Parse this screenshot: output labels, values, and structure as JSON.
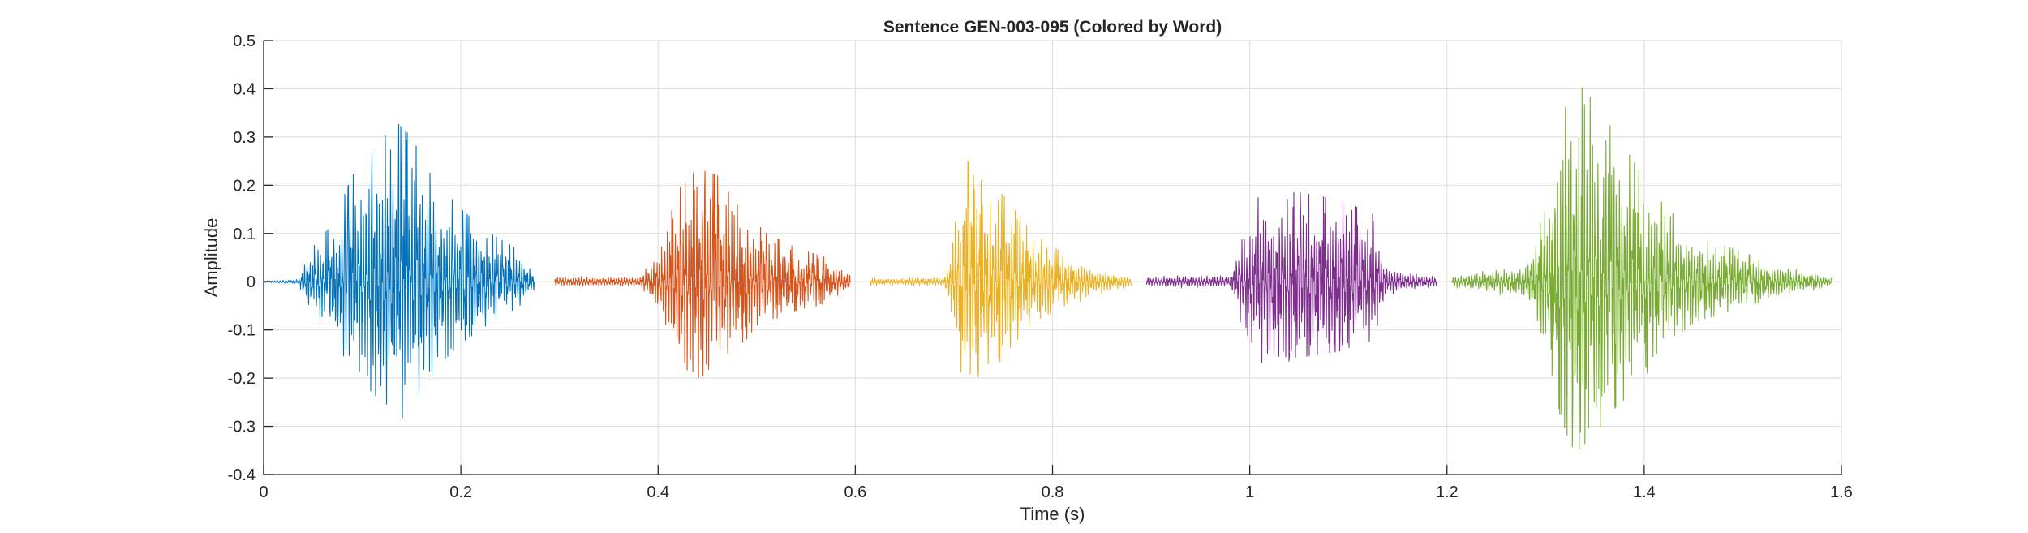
{
  "chart_data": {
    "type": "line",
    "title": "Sentence GEN-003-095 (Colored by Word)",
    "xlabel": "Time (s)",
    "ylabel": "Amplitude",
    "xlim": [
      0,
      1.6
    ],
    "ylim": [
      -0.4,
      0.5
    ],
    "xticks": [
      0,
      0.2,
      0.4,
      0.6,
      0.8,
      1,
      1.2,
      1.4,
      1.6
    ],
    "xtick_labels": [
      "0",
      "0.2",
      "0.4",
      "0.6",
      "0.8",
      "1",
      "1.2",
      "1.4",
      "1.6"
    ],
    "yticks": [
      -0.4,
      -0.3,
      -0.2,
      -0.1,
      0,
      0.1,
      0.2,
      0.3,
      0.4,
      0.5
    ],
    "ytick_labels": [
      "-0.4",
      "-0.3",
      "-0.2",
      "-0.1",
      "0",
      "0.1",
      "0.2",
      "0.3",
      "0.4",
      "0.5"
    ],
    "grid": true,
    "legend": false,
    "series": [
      {
        "color": "#0072BD",
        "x_start": 0.0,
        "x_end": 0.275,
        "envelope": [
          [
            0.0,
            0.002
          ],
          [
            0.035,
            0.005
          ],
          [
            0.045,
            0.06
          ],
          [
            0.07,
            0.12
          ],
          [
            0.09,
            0.22
          ],
          [
            0.11,
            0.27
          ],
          [
            0.135,
            0.33
          ],
          [
            0.15,
            0.3
          ],
          [
            0.17,
            0.22
          ],
          [
            0.2,
            0.15
          ],
          [
            0.23,
            0.1
          ],
          [
            0.255,
            0.07
          ],
          [
            0.275,
            0.02
          ]
        ]
      },
      {
        "color": "#D95319",
        "x_start": 0.295,
        "x_end": 0.595,
        "envelope": [
          [
            0.295,
            0.012
          ],
          [
            0.38,
            0.01
          ],
          [
            0.395,
            0.05
          ],
          [
            0.41,
            0.12
          ],
          [
            0.42,
            0.19
          ],
          [
            0.44,
            0.235
          ],
          [
            0.46,
            0.22
          ],
          [
            0.48,
            0.16
          ],
          [
            0.51,
            0.1
          ],
          [
            0.54,
            0.07
          ],
          [
            0.57,
            0.05
          ],
          [
            0.595,
            0.02
          ]
        ]
      },
      {
        "color": "#EDB120",
        "x_start": 0.615,
        "x_end": 0.88,
        "envelope": [
          [
            0.615,
            0.008
          ],
          [
            0.69,
            0.01
          ],
          [
            0.7,
            0.1
          ],
          [
            0.71,
            0.27
          ],
          [
            0.72,
            0.22
          ],
          [
            0.75,
            0.18
          ],
          [
            0.78,
            0.1
          ],
          [
            0.81,
            0.06
          ],
          [
            0.84,
            0.03
          ],
          [
            0.88,
            0.01
          ]
        ]
      },
      {
        "color": "#7E2F8E",
        "x_start": 0.895,
        "x_end": 1.19,
        "envelope": [
          [
            0.895,
            0.012
          ],
          [
            0.98,
            0.015
          ],
          [
            0.995,
            0.12
          ],
          [
            1.01,
            0.18
          ],
          [
            1.05,
            0.185
          ],
          [
            1.09,
            0.17
          ],
          [
            1.125,
            0.14
          ],
          [
            1.14,
            0.03
          ],
          [
            1.19,
            0.01
          ]
        ]
      },
      {
        "color": "#77AC30",
        "x_start": 1.205,
        "x_end": 1.59,
        "envelope": [
          [
            1.205,
            0.012
          ],
          [
            1.28,
            0.04
          ],
          [
            1.3,
            0.15
          ],
          [
            1.315,
            0.33
          ],
          [
            1.33,
            0.42
          ],
          [
            1.35,
            0.37
          ],
          [
            1.38,
            0.28
          ],
          [
            1.41,
            0.18
          ],
          [
            1.45,
            0.1
          ],
          [
            1.5,
            0.06
          ],
          [
            1.55,
            0.03
          ],
          [
            1.59,
            0.01
          ]
        ]
      }
    ]
  }
}
